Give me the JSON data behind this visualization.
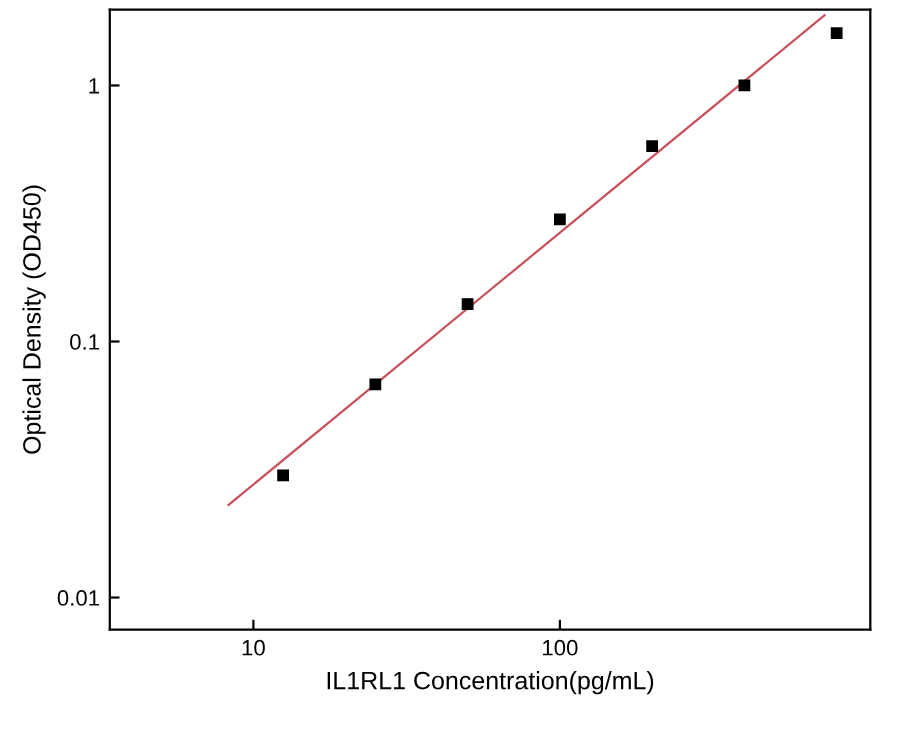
{
  "chart_data": {
    "type": "scatter",
    "xlabel": "IL1RL1 Concentration(pg/mL)",
    "ylabel": "Optical Density (OD450)",
    "log": "xy",
    "grid": false,
    "xlim": [
      3.4,
      1030
    ],
    "ylim": [
      0.0075,
      1.98
    ],
    "xticks": [
      10,
      100
    ],
    "yticks": [
      0.01,
      0.1,
      1
    ],
    "series": [
      {
        "marker": "square",
        "color": "#000000",
        "x": [
          12.5,
          25,
          50,
          100,
          200,
          400,
          800
        ],
        "values": [
          0.03,
          0.068,
          0.14,
          0.3,
          0.58,
          1.0,
          1.6
        ]
      },
      {
        "type": "line",
        "marker": "none",
        "color": "#c8505a",
        "x": [
          8.3,
          730
        ],
        "values": [
          0.023,
          1.88
        ]
      }
    ]
  }
}
